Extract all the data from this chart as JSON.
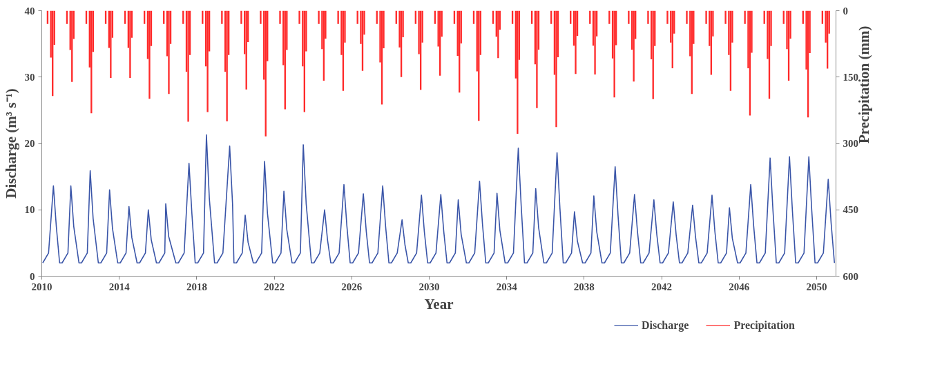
{
  "chart_data": {
    "type": "line",
    "xlabel": "Year",
    "ylabel": "Discharge (m³ s⁻¹)",
    "y2label": "Precipitation (mm)",
    "xlim": [
      2010,
      2051
    ],
    "xticks": [
      2010,
      2014,
      2018,
      2022,
      2026,
      2030,
      2034,
      2038,
      2042,
      2046,
      2050
    ],
    "ylim": [
      0,
      40
    ],
    "yticks": [
      0,
      10,
      20,
      30,
      40
    ],
    "y2lim": [
      600,
      0
    ],
    "y2ticks": [
      0,
      150,
      300,
      450,
      600
    ],
    "grid": false,
    "legend": "bottom right",
    "marker": "none",
    "line_style": "solid",
    "series": [
      {
        "name": "Discharge",
        "color": "#3a55a8",
        "x": [
          2010.05,
          2010.35,
          2010.6,
          2010.75,
          2010.92,
          2011.05,
          2011.35,
          2011.5,
          2011.65,
          2011.92,
          2012.05,
          2012.35,
          2012.5,
          2012.65,
          2012.92,
          2013.05,
          2013.35,
          2013.5,
          2013.65,
          2013.92,
          2014.05,
          2014.35,
          2014.5,
          2014.65,
          2014.92,
          2015.05,
          2015.35,
          2015.5,
          2015.65,
          2015.92,
          2016.05,
          2016.35,
          2016.4,
          2016.55,
          2016.92,
          2017.05,
          2017.35,
          2017.6,
          2017.75,
          2017.92,
          2018.05,
          2018.35,
          2018.5,
          2018.65,
          2018.92,
          2019.05,
          2019.35,
          2019.7,
          2019.85,
          2019.92,
          2020.05,
          2020.35,
          2020.5,
          2020.65,
          2020.92,
          2021.05,
          2021.35,
          2021.5,
          2021.65,
          2021.92,
          2022.05,
          2022.35,
          2022.5,
          2022.65,
          2022.92,
          2023.05,
          2023.35,
          2023.5,
          2023.65,
          2023.92,
          2024.05,
          2024.35,
          2024.6,
          2024.75,
          2024.92,
          2025.05,
          2025.35,
          2025.6,
          2025.75,
          2025.92,
          2026.05,
          2026.35,
          2026.6,
          2026.75,
          2026.92,
          2027.05,
          2027.35,
          2027.6,
          2027.75,
          2027.92,
          2028.05,
          2028.35,
          2028.6,
          2028.75,
          2028.92,
          2029.05,
          2029.35,
          2029.6,
          2029.75,
          2029.92,
          2030.05,
          2030.35,
          2030.6,
          2030.75,
          2030.92,
          2031.05,
          2031.35,
          2031.5,
          2031.65,
          2031.92,
          2032.05,
          2032.35,
          2032.6,
          2032.75,
          2032.92,
          2033.05,
          2033.35,
          2033.5,
          2033.65,
          2033.92,
          2034.05,
          2034.35,
          2034.6,
          2034.75,
          2034.92,
          2035.05,
          2035.35,
          2035.5,
          2035.65,
          2035.92,
          2036.05,
          2036.35,
          2036.6,
          2036.75,
          2036.92,
          2037.05,
          2037.35,
          2037.5,
          2037.65,
          2037.92,
          2038.05,
          2038.35,
          2038.5,
          2038.65,
          2038.92,
          2039.05,
          2039.35,
          2039.6,
          2039.75,
          2039.92,
          2040.05,
          2040.35,
          2040.6,
          2040.75,
          2040.92,
          2041.05,
          2041.35,
          2041.6,
          2041.75,
          2041.92,
          2042.05,
          2042.35,
          2042.6,
          2042.75,
          2042.92,
          2043.05,
          2043.35,
          2043.6,
          2043.75,
          2043.92,
          2044.05,
          2044.35,
          2044.6,
          2044.75,
          2044.92,
          2045.05,
          2045.35,
          2045.5,
          2045.65,
          2045.92,
          2046.05,
          2046.35,
          2046.6,
          2046.75,
          2046.92,
          2047.05,
          2047.35,
          2047.6,
          2047.75,
          2047.92,
          2048.05,
          2048.35,
          2048.6,
          2048.75,
          2048.92,
          2049.05,
          2049.35,
          2049.6,
          2049.75,
          2049.92,
          2050.05,
          2050.35,
          2050.6,
          2050.75,
          2050.92
        ],
        "values": [
          2,
          3.5,
          13.6,
          7.5,
          2,
          2,
          3.5,
          13.6,
          7.5,
          2,
          2,
          3.5,
          15.9,
          8.7,
          2,
          2,
          3.5,
          13.0,
          7.2,
          2,
          2,
          3.5,
          10.5,
          5.8,
          2,
          2,
          3.5,
          10.0,
          5.5,
          2,
          2,
          3.5,
          10.9,
          6.0,
          2,
          2,
          3.5,
          17.0,
          9.4,
          2,
          2,
          3.5,
          21.3,
          11.7,
          2,
          2,
          3.5,
          19.6,
          10.8,
          2,
          2,
          3.5,
          9.2,
          5.1,
          2,
          2,
          3.5,
          17.3,
          9.5,
          2,
          2,
          3.5,
          12.8,
          7.0,
          2,
          2,
          3.5,
          19.8,
          10.9,
          2,
          2,
          3.5,
          10.0,
          5.5,
          2,
          2,
          3.5,
          13.8,
          7.6,
          2,
          2,
          3.5,
          12.4,
          6.8,
          2,
          2,
          3.5,
          13.6,
          7.5,
          2,
          2,
          3.5,
          8.5,
          4.7,
          2,
          2,
          3.5,
          12.2,
          6.7,
          2,
          2,
          3.5,
          12.3,
          6.8,
          2,
          2,
          3.5,
          11.5,
          6.3,
          2,
          2,
          3.5,
          14.3,
          7.9,
          2,
          2,
          3.5,
          12.5,
          6.9,
          2,
          2,
          3.5,
          19.3,
          10.6,
          2,
          2,
          3.5,
          13.2,
          7.3,
          2,
          2,
          3.5,
          18.6,
          10.2,
          2,
          2,
          3.5,
          9.7,
          5.3,
          2,
          2,
          3.5,
          12.1,
          6.7,
          2,
          2,
          3.5,
          16.5,
          9.1,
          2,
          2,
          3.5,
          12.3,
          6.8,
          2,
          2,
          3.5,
          11.5,
          6.3,
          2,
          2,
          3.5,
          11.2,
          6.2,
          2,
          2,
          3.5,
          10.7,
          5.9,
          2,
          2,
          3.5,
          12.2,
          6.7,
          2,
          2,
          3.5,
          10.3,
          5.7,
          2,
          2,
          3.5,
          13.8,
          7.6,
          2,
          2,
          3.5,
          17.8,
          9.8,
          2,
          2,
          3.5,
          18.0,
          9.9,
          2,
          2,
          3.5,
          18.0,
          9.9,
          2,
          2,
          3.5,
          14.6,
          8.0,
          2
        ]
      },
      {
        "name": "Precipitation",
        "type": "bar",
        "axis": "y2",
        "color": "#ff2a2a",
        "x": [
          2010.3,
          2010.47,
          2010.56,
          2010.65,
          2011.3,
          2011.47,
          2011.56,
          2011.65,
          2012.3,
          2012.47,
          2012.56,
          2012.65,
          2013.3,
          2013.47,
          2013.56,
          2013.65,
          2014.3,
          2014.47,
          2014.56,
          2014.65,
          2015.3,
          2015.47,
          2015.56,
          2015.65,
          2016.3,
          2016.47,
          2016.56,
          2016.65,
          2017.3,
          2017.47,
          2017.56,
          2017.65,
          2018.3,
          2018.47,
          2018.56,
          2018.65,
          2019.3,
          2019.47,
          2019.56,
          2019.65,
          2020.3,
          2020.47,
          2020.56,
          2020.65,
          2021.3,
          2021.47,
          2021.56,
          2021.65,
          2022.3,
          2022.47,
          2022.56,
          2022.65,
          2023.3,
          2023.47,
          2023.56,
          2023.65,
          2024.3,
          2024.47,
          2024.56,
          2024.65,
          2025.3,
          2025.47,
          2025.56,
          2025.65,
          2026.3,
          2026.47,
          2026.56,
          2026.65,
          2027.3,
          2027.47,
          2027.56,
          2027.65,
          2028.3,
          2028.47,
          2028.56,
          2028.65,
          2029.3,
          2029.47,
          2029.56,
          2029.65,
          2030.3,
          2030.47,
          2030.56,
          2030.65,
          2031.3,
          2031.47,
          2031.56,
          2031.65,
          2032.3,
          2032.47,
          2032.56,
          2032.65,
          2033.3,
          2033.47,
          2033.56,
          2033.65,
          2034.3,
          2034.47,
          2034.56,
          2034.65,
          2035.3,
          2035.47,
          2035.56,
          2035.65,
          2036.3,
          2036.47,
          2036.56,
          2036.65,
          2037.3,
          2037.47,
          2037.56,
          2037.65,
          2038.3,
          2038.47,
          2038.56,
          2038.65,
          2039.3,
          2039.47,
          2039.56,
          2039.65,
          2040.3,
          2040.47,
          2040.56,
          2040.65,
          2041.3,
          2041.47,
          2041.56,
          2041.65,
          2042.3,
          2042.47,
          2042.56,
          2042.65,
          2043.3,
          2043.47,
          2043.56,
          2043.65,
          2044.3,
          2044.47,
          2044.56,
          2044.65,
          2045.3,
          2045.47,
          2045.56,
          2045.65,
          2046.3,
          2046.47,
          2046.56,
          2046.65,
          2047.3,
          2047.47,
          2047.56,
          2047.65,
          2048.3,
          2048.47,
          2048.56,
          2048.65,
          2049.3,
          2049.47,
          2049.56,
          2049.65,
          2050.3,
          2050.47,
          2050.56,
          2050.65
        ],
        "values": [
          30,
          106,
          193,
          77,
          30,
          89,
          161,
          64,
          30,
          128,
          232,
          93,
          30,
          84,
          152,
          61,
          30,
          84,
          152,
          61,
          30,
          109,
          199,
          80,
          30,
          103,
          188,
          75,
          30,
          138,
          251,
          100,
          30,
          126,
          229,
          92,
          30,
          138,
          250,
          100,
          30,
          98,
          178,
          71,
          30,
          156,
          284,
          114,
          30,
          123,
          223,
          89,
          30,
          126,
          229,
          92,
          30,
          87,
          158,
          63,
          30,
          100,
          181,
          72,
          30,
          75,
          136,
          54,
          30,
          117,
          212,
          85,
          30,
          83,
          150,
          60,
          30,
          98,
          179,
          72,
          30,
          81,
          147,
          59,
          30,
          102,
          185,
          74,
          30,
          137,
          249,
          100,
          30,
          59,
          107,
          43,
          30,
          153,
          278,
          111,
          30,
          121,
          220,
          88,
          30,
          145,
          263,
          105,
          30,
          79,
          143,
          57,
          30,
          79,
          144,
          58,
          30,
          108,
          196,
          78,
          30,
          88,
          160,
          64,
          30,
          110,
          200,
          80,
          30,
          72,
          130,
          52,
          30,
          103,
          188,
          75,
          30,
          80,
          145,
          58,
          30,
          100,
          181,
          72,
          30,
          130,
          237,
          95,
          30,
          109,
          199,
          80,
          30,
          87,
          158,
          63,
          30,
          133,
          241,
          96,
          30,
          72,
          131,
          52
        ]
      }
    ]
  }
}
